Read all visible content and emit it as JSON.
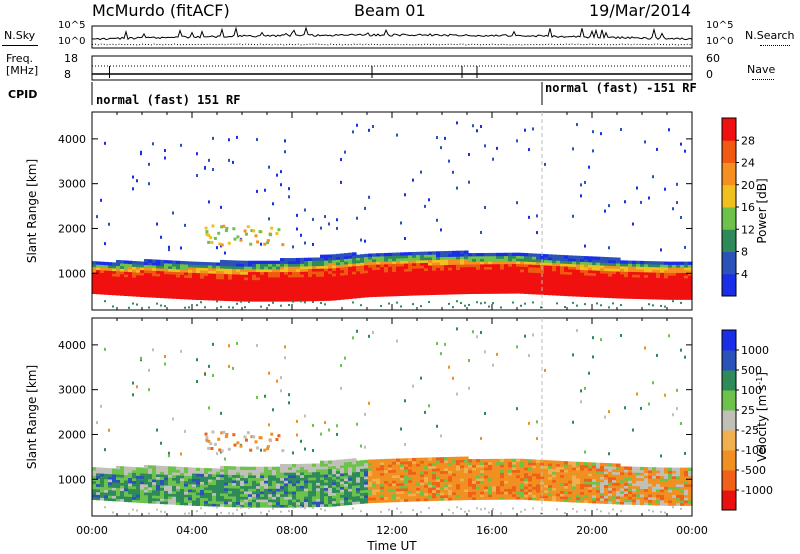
{
  "header": {
    "station": "McMurdo (fitACF)",
    "beam": "Beam 01",
    "date": "19/Mar/2014"
  },
  "top_panel": {
    "left_label": "N.Sky",
    "right_label": "N.Search",
    "left_ticks": [
      "10^5",
      "10^0"
    ],
    "right_ticks": [
      "10^5",
      "10^0"
    ]
  },
  "freq_panel": {
    "left_label_1": "Freq.",
    "left_label_2": "[MHz]",
    "right_label": "Nave",
    "left_ticks": [
      "18",
      "8"
    ],
    "right_ticks": [
      "60",
      "0"
    ]
  },
  "cpid": {
    "label": "CPID",
    "segments": [
      {
        "text": "normal (fast) 151 RF",
        "start_hour": 0
      },
      {
        "text": "normal (fast) -151 RF",
        "start_hour": 18
      }
    ]
  },
  "chart_data": [
    {
      "type": "heatmap",
      "name": "power",
      "ylabel": "Slant Range [km]",
      "xlim": [
        0,
        24
      ],
      "ylim": [
        180,
        4600
      ],
      "yticks": [
        "1000",
        "2000",
        "3000",
        "4000"
      ],
      "colorbar": {
        "label": "Power [dB]",
        "ticks": [
          "4",
          "8",
          "12",
          "16",
          "20",
          "24",
          "28"
        ],
        "colors": [
          "#1a2ee8",
          "#2a52b8",
          "#2f8a5a",
          "#6cc24a",
          "#f0c020",
          "#f59020",
          "#f05a10",
          "#f01010"
        ]
      },
      "band_profile": [
        {
          "hour": 0.0,
          "lower": 550,
          "upper": 1230
        },
        {
          "hour": 2.0,
          "lower": 480,
          "upper": 1260
        },
        {
          "hour": 4.0,
          "lower": 420,
          "upper": 1250
        },
        {
          "hour": 6.0,
          "lower": 380,
          "upper": 1230
        },
        {
          "hour": 8.0,
          "lower": 380,
          "upper": 1300
        },
        {
          "hour": 9.5,
          "lower": 400,
          "upper": 1380
        },
        {
          "hour": 11.0,
          "lower": 480,
          "upper": 1430
        },
        {
          "hour": 13.0,
          "lower": 520,
          "upper": 1470
        },
        {
          "hour": 15.0,
          "lower": 550,
          "upper": 1450
        },
        {
          "hour": 17.0,
          "lower": 560,
          "upper": 1430
        },
        {
          "hour": 19.0,
          "lower": 500,
          "upper": 1360
        },
        {
          "hour": 21.0,
          "lower": 450,
          "upper": 1290
        },
        {
          "hour": 23.0,
          "lower": 420,
          "upper": 1260
        },
        {
          "hour": 24.0,
          "lower": 420,
          "upper": 1260
        }
      ]
    },
    {
      "type": "heatmap",
      "name": "velocity",
      "ylabel": "Slant Range [km]",
      "xlabel": "Time UT",
      "xlim": [
        0,
        24
      ],
      "ylim": [
        180,
        4600
      ],
      "xticks": [
        "00:00",
        "04:00",
        "08:00",
        "12:00",
        "16:00",
        "20:00",
        "00:00"
      ],
      "yticks": [
        "1000",
        "2000",
        "3000",
        "4000"
      ],
      "colorbar": {
        "label": "Velocity [m s",
        "label_sup": "-1",
        "label_end": "]",
        "ticks": [
          "-1000",
          "-500",
          "-100",
          "-25",
          "25",
          "100",
          "500",
          "1000"
        ],
        "colors": [
          "#e81010",
          "#f06018",
          "#f09020",
          "#f0b050",
          "#c0c0b8",
          "#6cc24a",
          "#2f8a5a",
          "#2a52b8",
          "#1a2ee8"
        ]
      }
    }
  ]
}
